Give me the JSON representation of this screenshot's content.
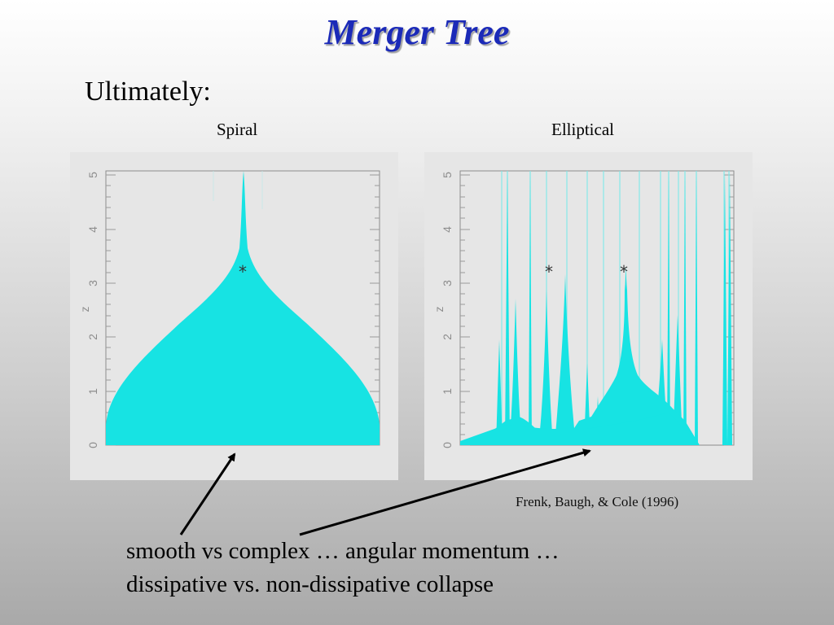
{
  "slide": {
    "title": "Merger Tree",
    "subtitle": "Ultimately:",
    "citation": "Frenk, Baugh, & Cole (1996)",
    "caption_line1": "smooth vs complex … angular momentum …",
    "caption_line2": "dissipative vs. non-dissipative collapse"
  },
  "panels": [
    {
      "label": "Spiral",
      "axis_label": "z",
      "ticks": [
        "0",
        "1",
        "2",
        "3",
        "4",
        "5"
      ],
      "tree_color": "#17e3e3",
      "marker": "*"
    },
    {
      "label": "Elliptical",
      "axis_label": "z",
      "ticks": [
        "0",
        "1",
        "2",
        "3",
        "4",
        "5"
      ],
      "tree_color": "#17e3e3",
      "marker": "*"
    }
  ],
  "colors": {
    "title": "#1b2ab8",
    "panel_bg": "#e6e6e6",
    "axis": "#8c8c8c",
    "arrow": "#000000"
  }
}
